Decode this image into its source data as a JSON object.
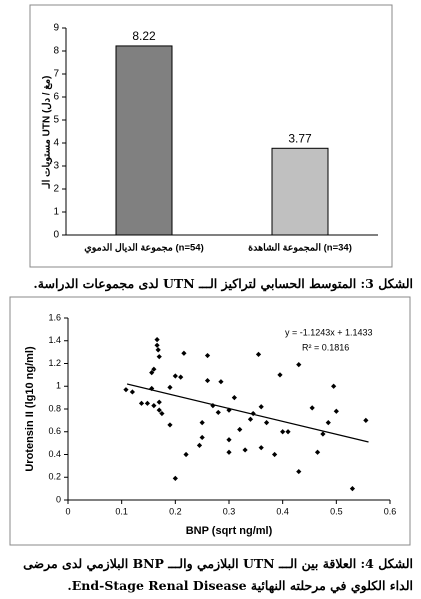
{
  "chart_data": [
    {
      "type": "bar",
      "y_label": "مستويات الـ UTN (مغ / دل)",
      "categories": [
        "مجموعة الديال الدموي (n=54)",
        "المجموعة الشاهدة (n=34)"
      ],
      "values": [
        8.22,
        3.77
      ],
      "colors": [
        "#808080",
        "#c0c0c0"
      ],
      "ylim": [
        0,
        9
      ],
      "yticks": [
        0,
        1,
        2,
        3,
        4,
        5,
        6,
        7,
        8,
        9
      ],
      "caption": [
        "الشكل 3: المتوسط الحسابي لتراكيز الـــ UTN لدى مجموعات الدراسة."
      ]
    },
    {
      "type": "scatter",
      "x_label": "BNP (sqrt ng/ml)",
      "y_label": "Urotensin II (lg10 ng/ml)",
      "annotations": [
        "y = -1.1243x + 1.1433",
        "R² = 0.1816"
      ],
      "color": "#000000",
      "x": [
        0.108,
        0.12,
        0.137,
        0.148,
        0.156,
        0.16,
        0.166,
        0.166,
        0.168,
        0.17,
        0.16,
        0.156,
        0.17,
        0.17,
        0.175,
        0.2,
        0.19,
        0.19,
        0.216,
        0.21,
        0.22,
        0.2,
        0.25,
        0.25,
        0.245,
        0.26,
        0.26,
        0.27,
        0.28,
        0.285,
        0.3,
        0.3,
        0.3,
        0.31,
        0.32,
        0.33,
        0.34,
        0.345,
        0.355,
        0.36,
        0.36,
        0.37,
        0.385,
        0.395,
        0.4,
        0.41,
        0.43,
        0.43,
        0.455,
        0.465,
        0.475,
        0.485,
        0.495,
        0.5,
        0.53,
        0.555
      ],
      "values": [
        0.97,
        0.95,
        0.85,
        0.85,
        0.98,
        0.83,
        1.41,
        1.36,
        1.32,
        1.26,
        1.15,
        1.12,
        0.86,
        0.79,
        0.76,
        1.09,
        0.66,
        0.99,
        1.29,
        1.08,
        0.4,
        0.19,
        0.68,
        0.55,
        0.48,
        1.27,
        1.05,
        0.83,
        0.77,
        1.04,
        0.79,
        0.53,
        0.42,
        0.9,
        0.62,
        0.44,
        0.71,
        0.76,
        1.28,
        0.82,
        0.46,
        0.68,
        0.4,
        1.1,
        0.6,
        0.6,
        1.19,
        0.25,
        0.81,
        0.42,
        0.58,
        0.68,
        1.0,
        0.78,
        0.1,
        0.7
      ],
      "trendline": {
        "x": [
          0.11,
          0.56
        ],
        "y": [
          1.02,
          0.51
        ]
      },
      "xlim": [
        0,
        0.6
      ],
      "xticks": [
        0,
        0.1,
        0.2,
        0.3,
        0.4,
        0.5,
        0.6
      ],
      "ylim": [
        0,
        1.6
      ],
      "yticks": [
        0,
        0.2,
        0.4,
        0.6,
        0.8,
        1,
        1.2,
        1.4,
        1.6
      ],
      "caption": [
        "الشكل 4: العلاقة بين الـــ UTN البلازمي والـــ BNP البلازمي لدى مرضى",
        "الداء الكلوي في مرحلته النهائية End-Stage Renal Disease."
      ]
    }
  ]
}
